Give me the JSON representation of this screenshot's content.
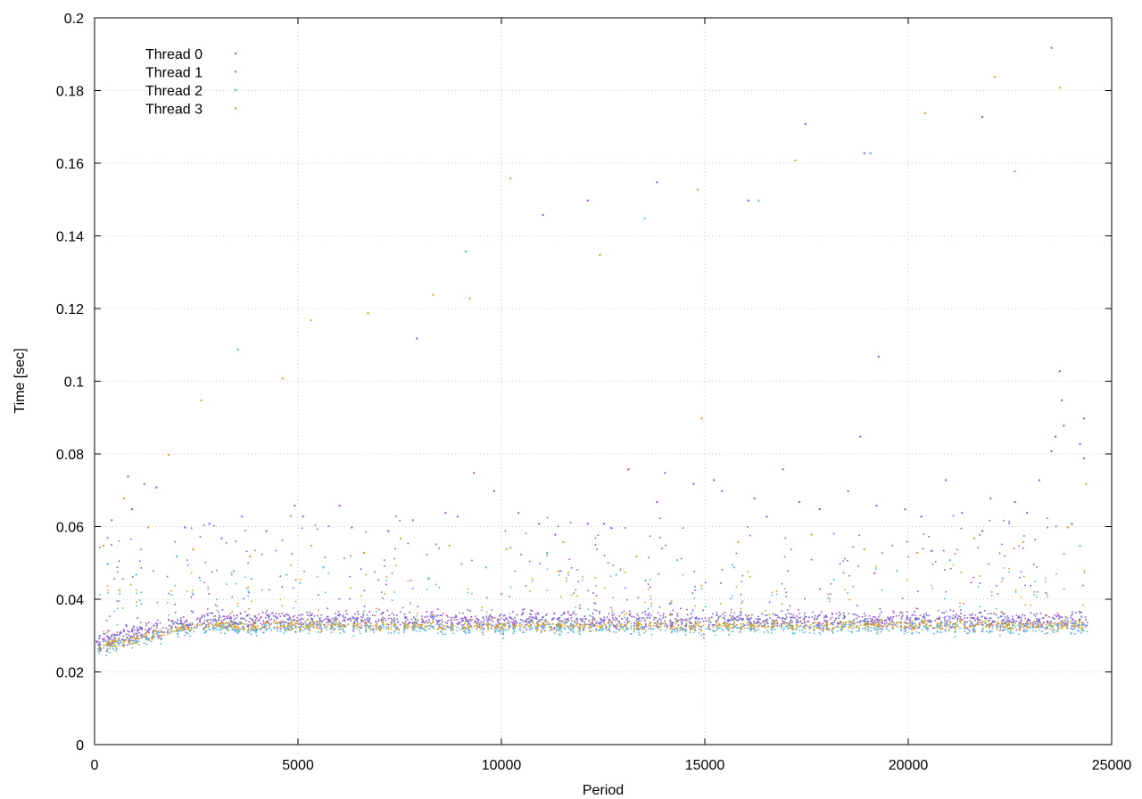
{
  "chart_data": {
    "type": "scatter",
    "title": "",
    "xlabel": "Period",
    "ylabel": "Time [sec]",
    "xlim": [
      0,
      25000
    ],
    "ylim": [
      0,
      0.2
    ],
    "x_ticks": [
      0,
      5000,
      10000,
      15000,
      20000,
      25000
    ],
    "y_ticks": [
      0,
      0.02,
      0.04,
      0.06,
      0.08,
      0.1,
      0.12,
      0.14,
      0.16,
      0.18,
      0.2
    ],
    "x_tick_labels": [
      "0",
      "5000",
      "10000",
      "15000",
      "20000",
      "25000"
    ],
    "y_tick_labels": [
      "0",
      "0.02",
      "0.04",
      "0.06",
      "0.08",
      "0.1",
      "0.12",
      "0.14",
      "0.16",
      "0.18",
      "0.2"
    ],
    "grid": true,
    "legend_position": "top-left",
    "x_range_of_data": [
      0,
      24400
    ],
    "series": [
      {
        "name": "Thread 0",
        "color": "#9b4fd6",
        "points": [
          [
            400,
            0.062
          ],
          [
            900,
            0.065
          ],
          [
            1500,
            0.071
          ],
          [
            2200,
            0.06
          ],
          [
            3100,
            0.057
          ],
          [
            4200,
            0.059
          ],
          [
            5100,
            0.063
          ],
          [
            6000,
            0.066
          ],
          [
            7200,
            0.059
          ],
          [
            8600,
            0.064
          ],
          [
            9300,
            0.075
          ],
          [
            10400,
            0.064
          ],
          [
            11300,
            0.058
          ],
          [
            12100,
            0.061
          ],
          [
            13100,
            0.076
          ],
          [
            13800,
            0.067
          ],
          [
            14700,
            0.072
          ],
          [
            15400,
            0.07
          ],
          [
            16200,
            0.068
          ],
          [
            16900,
            0.076
          ],
          [
            17800,
            0.065
          ],
          [
            18500,
            0.07
          ],
          [
            19200,
            0.066
          ],
          [
            20300,
            0.063
          ],
          [
            20900,
            0.073
          ],
          [
            21800,
            0.059
          ],
          [
            22600,
            0.067
          ],
          [
            23200,
            0.073
          ],
          [
            23600,
            0.085
          ],
          [
            23800,
            0.088
          ],
          [
            24200,
            0.083
          ],
          [
            24300,
            0.079
          ],
          [
            12100,
            0.15
          ],
          [
            16050,
            0.15
          ],
          [
            17450,
            0.171
          ],
          [
            19250,
            0.107
          ],
          [
            21800,
            0.173
          ]
        ]
      },
      {
        "name": "Thread 1",
        "color": "#6a6ad4",
        "points": [
          [
            800,
            0.074
          ],
          [
            1200,
            0.072
          ],
          [
            2800,
            0.061
          ],
          [
            3600,
            0.063
          ],
          [
            4900,
            0.066
          ],
          [
            6300,
            0.06
          ],
          [
            7800,
            0.062
          ],
          [
            8900,
            0.063
          ],
          [
            9800,
            0.07
          ],
          [
            10900,
            0.061
          ],
          [
            12500,
            0.061
          ],
          [
            14000,
            0.075
          ],
          [
            15200,
            0.073
          ],
          [
            16500,
            0.063
          ],
          [
            17300,
            0.067
          ],
          [
            18800,
            0.085
          ],
          [
            19900,
            0.065
          ],
          [
            21300,
            0.064
          ],
          [
            22000,
            0.068
          ],
          [
            22900,
            0.064
          ],
          [
            23500,
            0.081
          ],
          [
            23700,
            0.103
          ],
          [
            23750,
            0.095
          ],
          [
            24000,
            0.061
          ],
          [
            24300,
            0.09
          ],
          [
            7900,
            0.112
          ],
          [
            11000,
            0.146
          ],
          [
            13800,
            0.155
          ],
          [
            18900,
            0.163
          ],
          [
            23500,
            0.192
          ]
        ]
      },
      {
        "name": "Thread 2",
        "color": "#5ab3e0",
        "points": [
          [
            300,
            0.05
          ],
          [
            1000,
            0.047
          ],
          [
            2000,
            0.052
          ],
          [
            3400,
            0.048
          ],
          [
            4700,
            0.047
          ],
          [
            5600,
            0.049
          ],
          [
            7100,
            0.051
          ],
          [
            8200,
            0.046
          ],
          [
            9600,
            0.049
          ],
          [
            11100,
            0.053
          ],
          [
            12800,
            0.047
          ],
          [
            14300,
            0.051
          ],
          [
            15700,
            0.049
          ],
          [
            17100,
            0.054
          ],
          [
            18300,
            0.05
          ],
          [
            19700,
            0.048
          ],
          [
            21000,
            0.051
          ],
          [
            22300,
            0.046
          ],
          [
            23400,
            0.06
          ],
          [
            24200,
            0.055
          ],
          [
            3500,
            0.109
          ],
          [
            9100,
            0.136
          ],
          [
            13500,
            0.145
          ],
          [
            16300,
            0.15
          ],
          [
            19050,
            0.163
          ],
          [
            22600,
            0.158
          ]
        ]
      },
      {
        "name": "Thread 3",
        "color": "#d4a020",
        "points": [
          [
            200,
            0.055
          ],
          [
            700,
            0.068
          ],
          [
            1300,
            0.06
          ],
          [
            2400,
            0.054
          ],
          [
            3800,
            0.052
          ],
          [
            5300,
            0.055
          ],
          [
            6600,
            0.053
          ],
          [
            7500,
            0.057
          ],
          [
            8700,
            0.055
          ],
          [
            10100,
            0.054
          ],
          [
            11500,
            0.056
          ],
          [
            13300,
            0.052
          ],
          [
            14900,
            0.09
          ],
          [
            15800,
            0.056
          ],
          [
            17600,
            0.058
          ],
          [
            18900,
            0.054
          ],
          [
            20200,
            0.053
          ],
          [
            21600,
            0.057
          ],
          [
            22800,
            0.056
          ],
          [
            23900,
            0.06
          ],
          [
            24350,
            0.072
          ],
          [
            1800,
            0.08
          ],
          [
            2600,
            0.095
          ],
          [
            4600,
            0.101
          ],
          [
            5300,
            0.117
          ],
          [
            6700,
            0.119
          ],
          [
            8300,
            0.124
          ],
          [
            9200,
            0.123
          ],
          [
            10200,
            0.156
          ],
          [
            12400,
            0.135
          ],
          [
            14800,
            0.153
          ],
          [
            17200,
            0.161
          ],
          [
            20400,
            0.174
          ],
          [
            22100,
            0.184
          ],
          [
            23700,
            0.181
          ]
        ]
      }
    ],
    "dense_band": {
      "description_values": "typical Time values across all periods",
      "center": 0.033,
      "low": 0.028,
      "high": 0.039,
      "start_center": 0.027
    }
  }
}
